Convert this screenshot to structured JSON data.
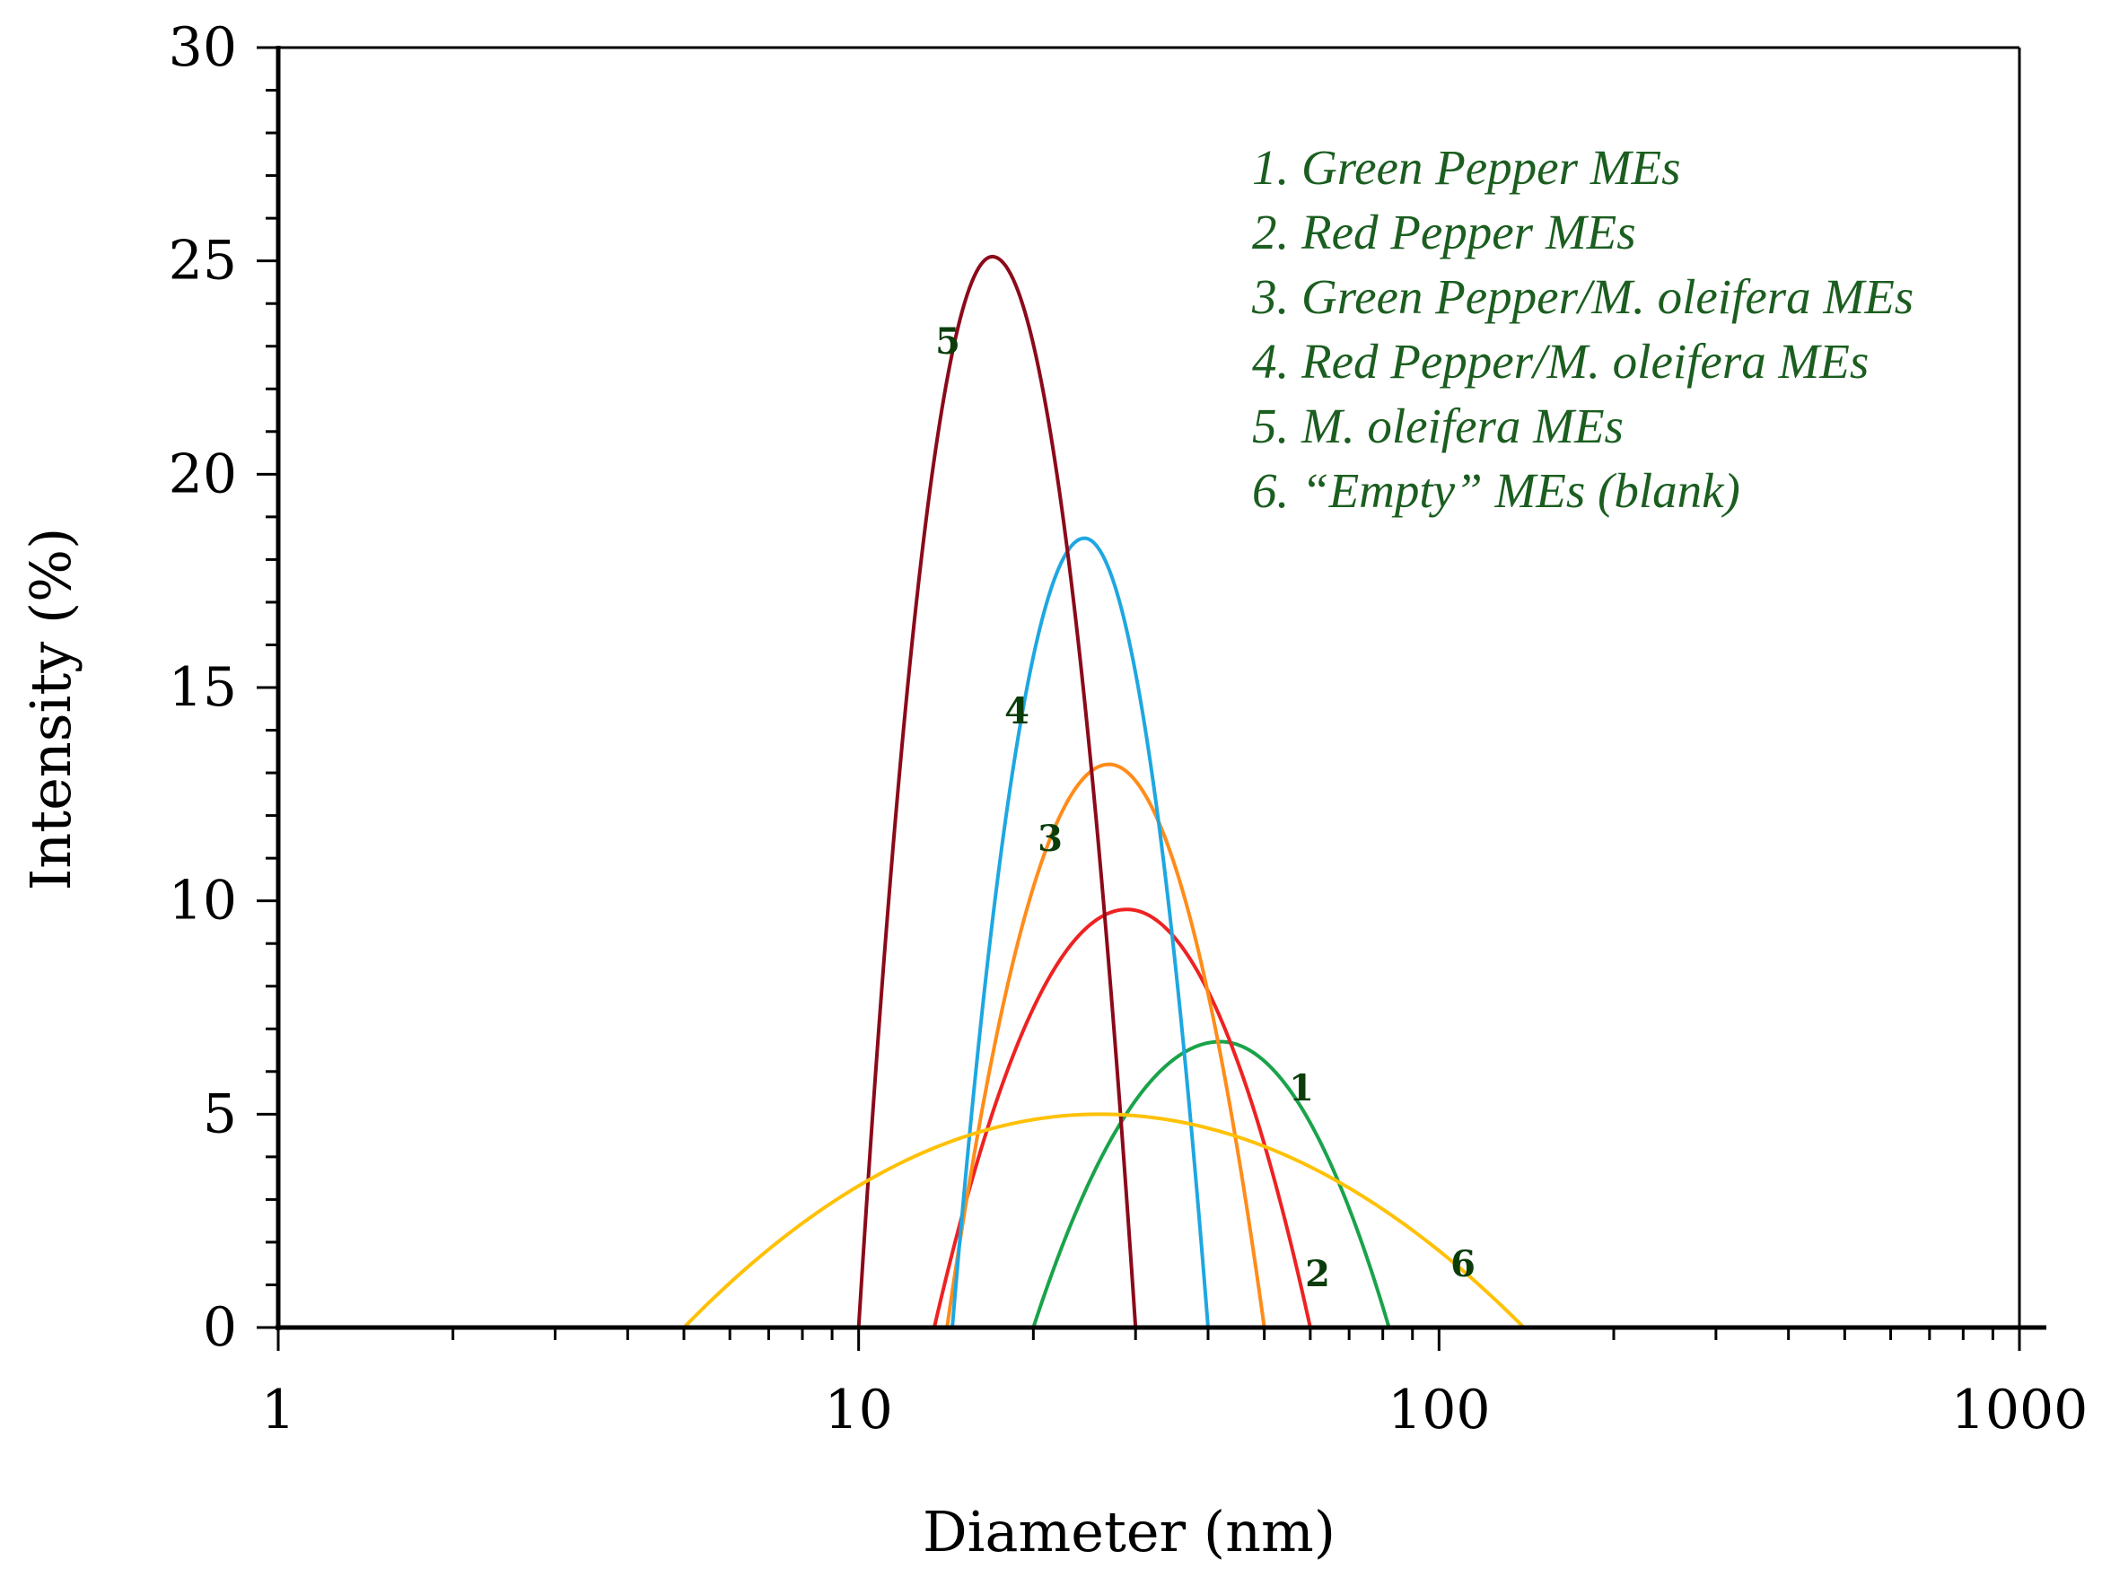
{
  "chart_data": {
    "type": "line",
    "xlabel": "Diameter (nm)",
    "ylabel": "Intensity (%)",
    "x_scale": "log",
    "xlim": [
      1,
      1000
    ],
    "ylim": [
      0,
      30
    ],
    "x_ticks": [
      "1",
      "10",
      "100",
      "1000"
    ],
    "y_ticks": [
      "0",
      "5",
      "10",
      "15",
      "20",
      "25",
      "30"
    ],
    "grid": false,
    "legend_position": "top-right",
    "legend": [
      "1.  Green Pepper MEs",
      "2.  Red Pepper MEs",
      "3.  Green Pepper/M. oleifera MEs",
      "4.  Red Pepper/M. oleifera MEs",
      "5.  M. oleifera MEs",
      "6. “Empty” MEs (blank)"
    ],
    "series": [
      {
        "label": "1",
        "color": "#1aa34a",
        "start": 20,
        "peak_x": 42,
        "peak_y": 6.7,
        "end": 82
      },
      {
        "label": "2",
        "color": "#ee2222",
        "start": 13.5,
        "peak_x": 29,
        "peak_y": 9.8,
        "end": 60
      },
      {
        "label": "3",
        "color": "#ff8c1a",
        "start": 14.2,
        "peak_x": 27,
        "peak_y": 13.2,
        "end": 50
      },
      {
        "label": "4",
        "color": "#1ea7e1",
        "start": 14.5,
        "peak_x": 24.5,
        "peak_y": 18.5,
        "end": 40
      },
      {
        "label": "5",
        "color": "#8b0a1a",
        "start": 10,
        "peak_x": 17,
        "peak_y": 25.1,
        "end": 30
      },
      {
        "label": "6",
        "color": "#ffc107",
        "start": 5,
        "peak_x": 26,
        "peak_y": 5.0,
        "end": 140
      }
    ]
  }
}
